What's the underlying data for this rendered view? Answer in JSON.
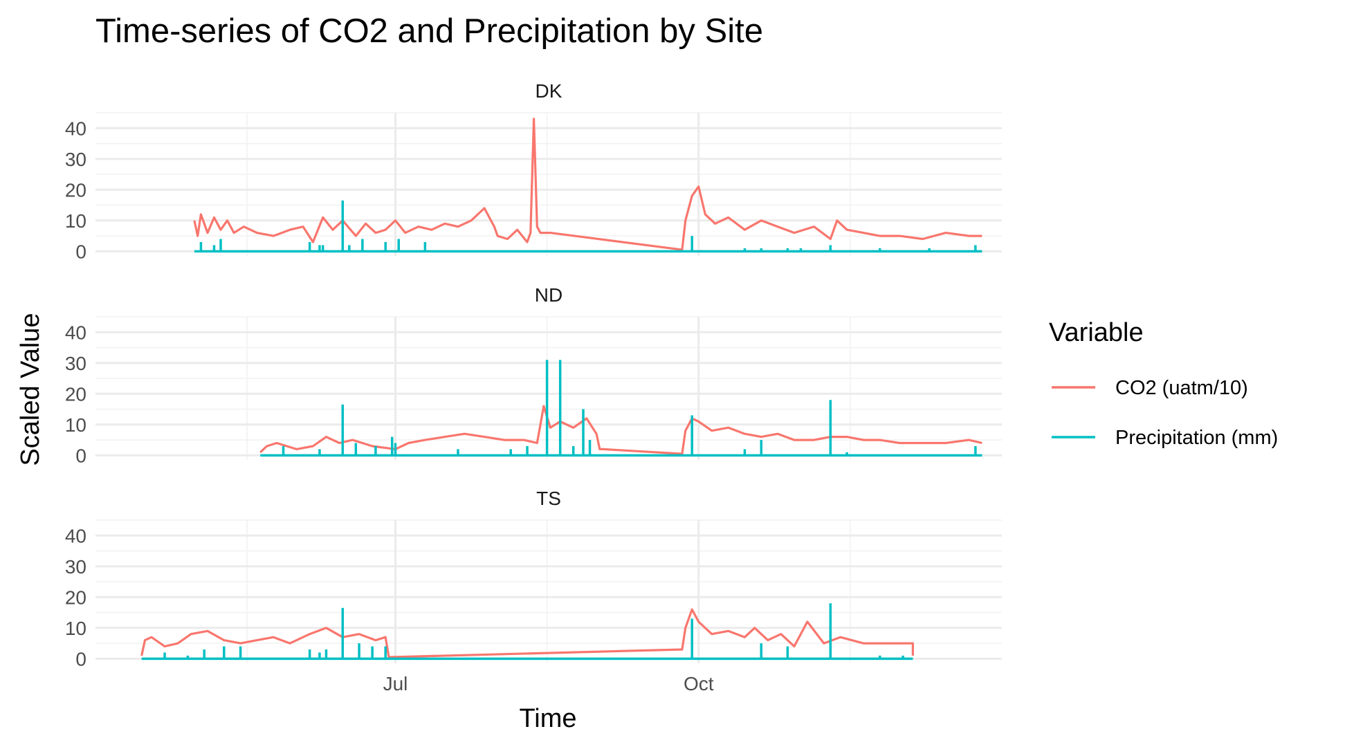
{
  "chart_data": {
    "type": "line",
    "title": "Time-series of CO2 and Precipitation by Site",
    "xlabel": "Time",
    "ylabel": "Scaled Value",
    "x_axis": {
      "range": [
        "2023-04-01",
        "2024-01-01"
      ],
      "tick_dates": [
        "2023-07-01",
        "2023-10-01"
      ],
      "tick_labels": [
        "Jul",
        "Oct"
      ],
      "minor_grid_dates": [
        "2023-05-17",
        "2023-08-16",
        "2023-11-16"
      ]
    },
    "y_axis": {
      "ylim": [
        -1.5,
        45
      ],
      "ticks": [
        0,
        10,
        20,
        30,
        40
      ],
      "minor_ticks": [
        5,
        15,
        25,
        35,
        45
      ]
    },
    "grid": true,
    "legend": {
      "title": "Variable",
      "placement": "right",
      "entries": [
        {
          "label": "CO2 (uatm/10)",
          "color": "#F8766D"
        },
        {
          "label": "Precipitation (mm)",
          "color": "#00BFC4"
        }
      ]
    },
    "facets": [
      {
        "label": "DK",
        "series": [
          {
            "name": "CO2 (uatm/10)",
            "color": "#F8766D",
            "x": [
              "2023-05-01",
              "2023-05-02",
              "2023-05-03",
              "2023-05-05",
              "2023-05-07",
              "2023-05-09",
              "2023-05-11",
              "2023-05-13",
              "2023-05-16",
              "2023-05-20",
              "2023-05-25",
              "2023-05-30",
              "2023-06-03",
              "2023-06-06",
              "2023-06-09",
              "2023-06-12",
              "2023-06-15",
              "2023-06-19",
              "2023-06-22",
              "2023-06-25",
              "2023-06-28",
              "2023-07-01",
              "2023-07-04",
              "2023-07-08",
              "2023-07-12",
              "2023-07-16",
              "2023-07-20",
              "2023-07-24",
              "2023-07-28",
              "2023-07-31",
              "2023-08-01",
              "2023-08-04",
              "2023-08-07",
              "2023-08-10",
              "2023-08-11",
              "2023-08-12",
              "2023-08-13",
              "2023-08-14",
              "2023-08-17",
              "2023-09-26",
              "2023-09-27",
              "2023-09-29",
              "2023-10-01",
              "2023-10-03",
              "2023-10-06",
              "2023-10-10",
              "2023-10-15",
              "2023-10-20",
              "2023-10-25",
              "2023-10-30",
              "2023-11-05",
              "2023-11-10",
              "2023-11-12",
              "2023-11-15",
              "2023-11-20",
              "2023-11-25",
              "2023-12-01",
              "2023-12-08",
              "2023-12-15",
              "2023-12-22",
              "2023-12-26"
            ],
            "y": [
              10,
              5,
              12,
              6,
              11,
              7,
              10,
              6,
              8,
              6,
              5,
              7,
              8,
              3,
              11,
              7,
              10,
              5,
              9,
              6,
              7,
              10,
              6,
              8,
              7,
              9,
              8,
              10,
              14,
              8,
              5,
              4,
              7,
              3,
              6,
              43,
              8,
              6,
              6,
              0.5,
              10,
              18,
              21,
              12,
              9,
              11,
              7,
              10,
              8,
              6,
              8,
              4,
              10,
              7,
              6,
              5,
              5,
              4,
              6,
              5,
              5
            ]
          },
          {
            "name": "Precipitation (mm)",
            "color": "#00BFC4",
            "x": [
              "2023-05-03",
              "2023-05-07",
              "2023-05-09",
              "2023-06-05",
              "2023-06-08",
              "2023-06-09",
              "2023-06-15",
              "2023-06-17",
              "2023-06-21",
              "2023-06-28",
              "2023-07-02",
              "2023-07-10",
              "2023-09-29",
              "2023-10-15",
              "2023-10-20",
              "2023-10-28",
              "2023-11-01",
              "2023-11-10",
              "2023-11-25",
              "2023-12-10",
              "2023-12-24"
            ],
            "y": [
              3,
              2,
              4,
              3,
              2,
              2,
              16.5,
              2,
              4,
              3,
              4,
              3,
              5,
              1,
              1,
              1,
              1,
              2,
              1,
              1,
              2
            ]
          }
        ]
      },
      {
        "label": "ND",
        "series": [
          {
            "name": "CO2 (uatm/10)",
            "color": "#F8766D",
            "x": [
              "2023-05-21",
              "2023-05-23",
              "2023-05-26",
              "2023-06-01",
              "2023-06-06",
              "2023-06-10",
              "2023-06-14",
              "2023-06-18",
              "2023-06-24",
              "2023-07-01",
              "2023-07-05",
              "2023-07-10",
              "2023-07-16",
              "2023-07-22",
              "2023-07-28",
              "2023-08-03",
              "2023-08-09",
              "2023-08-13",
              "2023-08-15",
              "2023-08-17",
              "2023-08-20",
              "2023-08-24",
              "2023-08-28",
              "2023-08-31",
              "2023-09-01",
              "2023-09-02",
              "2023-09-26",
              "2023-09-27",
              "2023-09-29",
              "2023-10-01",
              "2023-10-05",
              "2023-10-10",
              "2023-10-15",
              "2023-10-20",
              "2023-10-25",
              "2023-10-30",
              "2023-11-05",
              "2023-11-10",
              "2023-11-15",
              "2023-11-20",
              "2023-11-25",
              "2023-12-01",
              "2023-12-08",
              "2023-12-15",
              "2023-12-22",
              "2023-12-26"
            ],
            "y": [
              1,
              3,
              4,
              2,
              3,
              6,
              4,
              5,
              3,
              2,
              4,
              5,
              6,
              7,
              6,
              5,
              5,
              4,
              16,
              9,
              11,
              9,
              12,
              7,
              2,
              2,
              0.5,
              8,
              12,
              11,
              8,
              9,
              7,
              6,
              7,
              5,
              5,
              6,
              6,
              5,
              5,
              4,
              4,
              4,
              5,
              4
            ]
          },
          {
            "name": "Precipitation (mm)",
            "color": "#00BFC4",
            "x": [
              "2023-05-28",
              "2023-06-08",
              "2023-06-15",
              "2023-06-19",
              "2023-06-25",
              "2023-06-30",
              "2023-07-01",
              "2023-07-20",
              "2023-08-05",
              "2023-08-10",
              "2023-08-16",
              "2023-08-20",
              "2023-08-24",
              "2023-08-27",
              "2023-08-29",
              "2023-09-29",
              "2023-10-15",
              "2023-10-20",
              "2023-11-10",
              "2023-11-15",
              "2023-12-24"
            ],
            "y": [
              3,
              2,
              16.5,
              4,
              3,
              6,
              4,
              2,
              2,
              3,
              31,
              31,
              3,
              15,
              5,
              13,
              2,
              5,
              18,
              1,
              3
            ]
          }
        ]
      },
      {
        "label": "TS",
        "series": [
          {
            "name": "CO2 (uatm/10)",
            "color": "#F8766D",
            "x": [
              "2023-04-15",
              "2023-04-16",
              "2023-04-18",
              "2023-04-22",
              "2023-04-26",
              "2023-04-30",
              "2023-05-05",
              "2023-05-10",
              "2023-05-15",
              "2023-05-20",
              "2023-05-25",
              "2023-05-30",
              "2023-06-05",
              "2023-06-10",
              "2023-06-15",
              "2023-06-20",
              "2023-06-25",
              "2023-06-28",
              "2023-06-29",
              "2023-09-26",
              "2023-09-27",
              "2023-09-29",
              "2023-10-01",
              "2023-10-05",
              "2023-10-10",
              "2023-10-15",
              "2023-10-18",
              "2023-10-22",
              "2023-10-26",
              "2023-10-30",
              "2023-11-03",
              "2023-11-08",
              "2023-11-13",
              "2023-11-20",
              "2023-11-28",
              "2023-12-05",
              "2023-12-05"
            ],
            "y": [
              1,
              6,
              7,
              4,
              5,
              8,
              9,
              6,
              5,
              6,
              7,
              5,
              8,
              10,
              7,
              8,
              6,
              7,
              0.5,
              3,
              10,
              16,
              12,
              8,
              9,
              7,
              10,
              6,
              8,
              4,
              12,
              5,
              7,
              5,
              5,
              5,
              1
            ]
          },
          {
            "name": "Precipitation (mm)",
            "color": "#00BFC4",
            "x": [
              "2023-04-22",
              "2023-04-29",
              "2023-05-04",
              "2023-05-10",
              "2023-05-15",
              "2023-06-05",
              "2023-06-08",
              "2023-06-10",
              "2023-06-15",
              "2023-06-20",
              "2023-06-24",
              "2023-06-28",
              "2023-09-29",
              "2023-10-20",
              "2023-10-28",
              "2023-11-10",
              "2023-11-25",
              "2023-12-02"
            ],
            "y": [
              2,
              1,
              3,
              4,
              4,
              3,
              2,
              3,
              16.5,
              5,
              4,
              4,
              13,
              5,
              4,
              18,
              1,
              1
            ]
          }
        ]
      }
    ]
  }
}
